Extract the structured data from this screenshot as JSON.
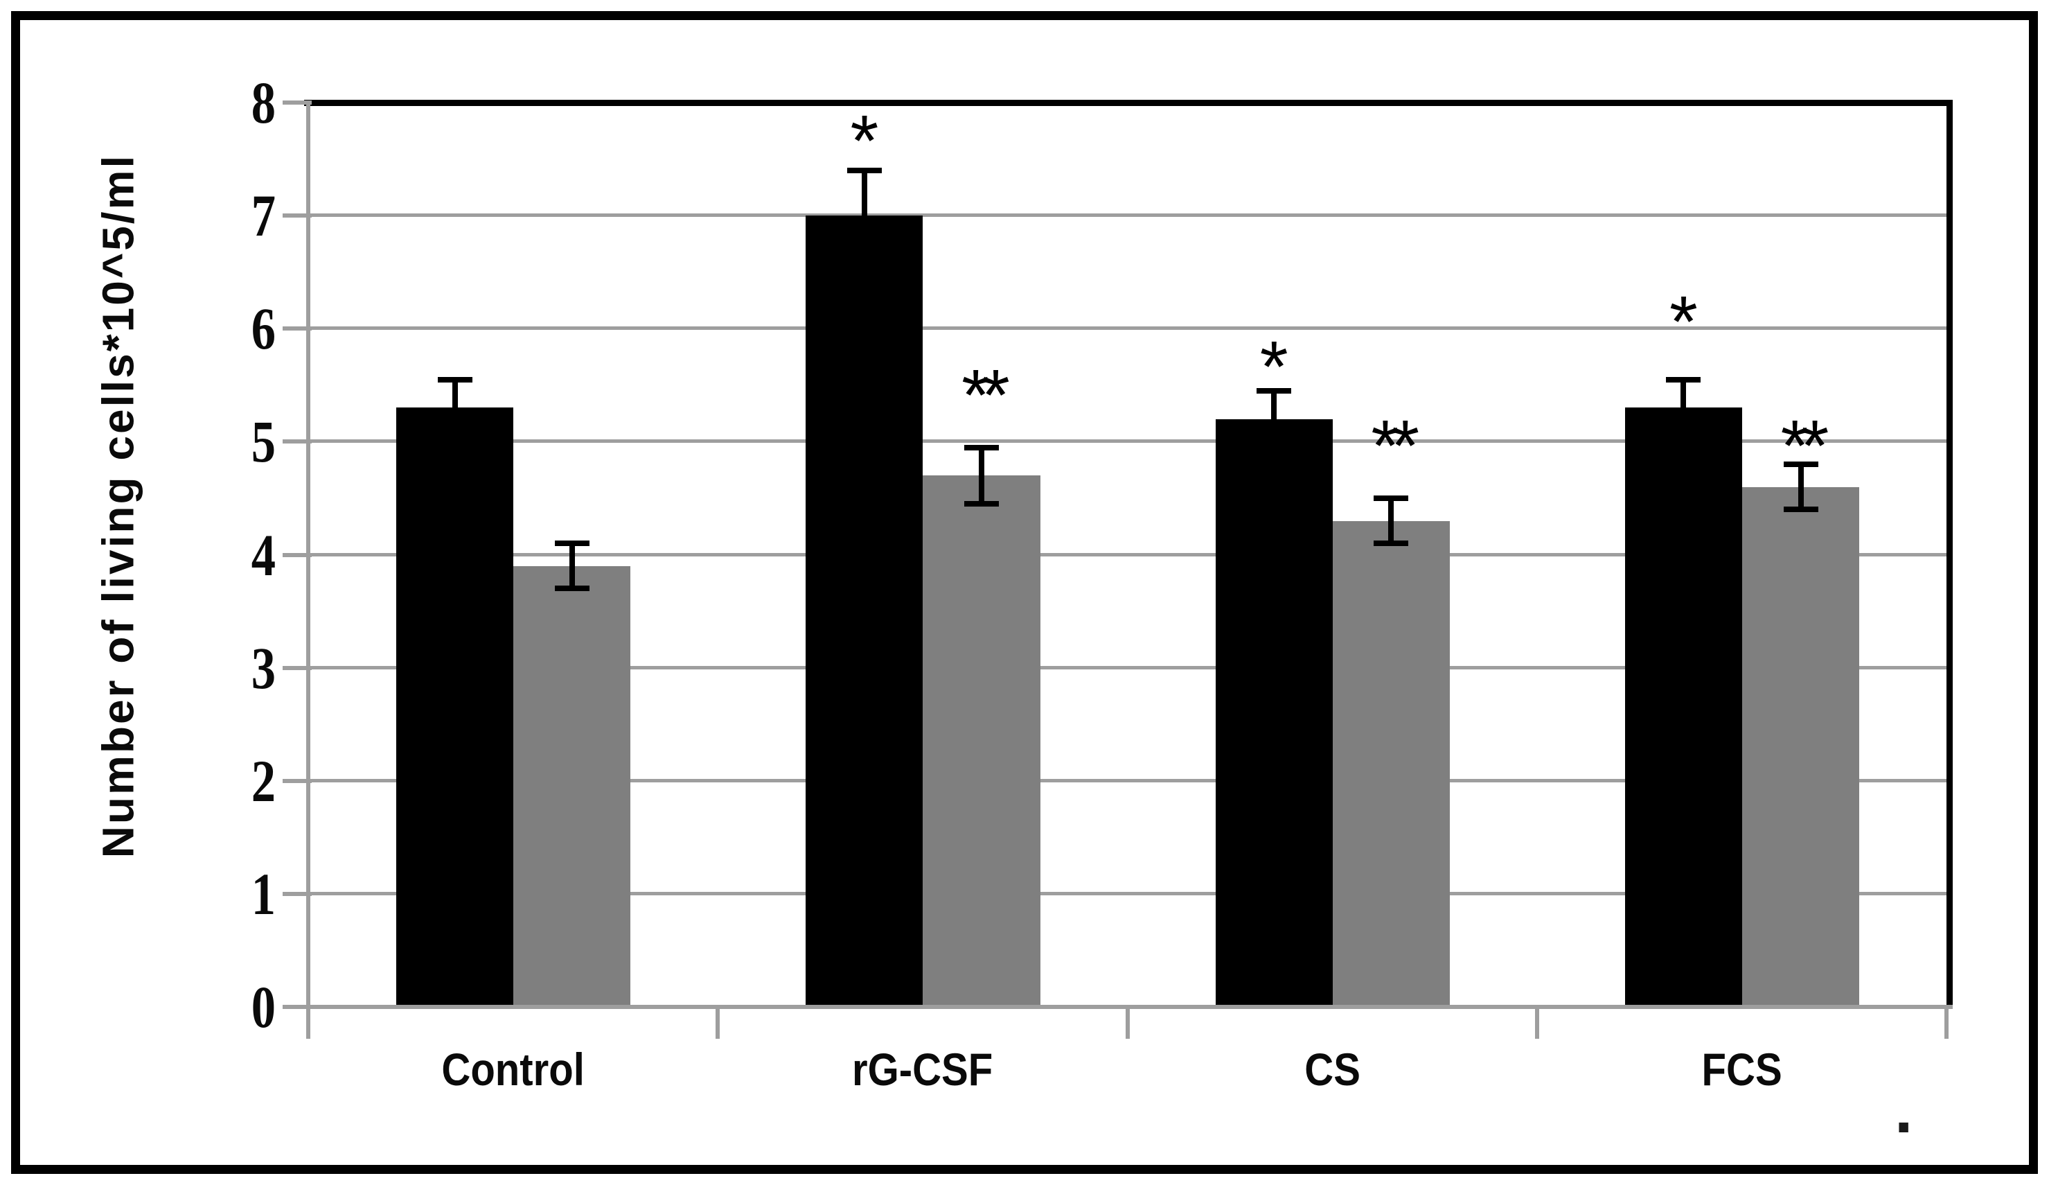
{
  "figure": {
    "background_color": "#ffffff",
    "frame_color": "#000000",
    "axis_color": "#9e9e9e",
    "gridline_color": "#9e9e9e"
  },
  "chart_data": {
    "type": "bar",
    "title": "",
    "xlabel": "",
    "ylabel": "Number of living cells*10^5/ml",
    "ylim": [
      0,
      8
    ],
    "yticks": [
      0,
      1,
      2,
      3,
      4,
      5,
      6,
      7,
      8
    ],
    "grid": true,
    "legend_position": "none",
    "categories": [
      "Control",
      "rG-CSF",
      "CS",
      "FCS"
    ],
    "series": [
      {
        "name": "black-bars",
        "color": "#000000",
        "values": [
          5.3,
          7.0,
          5.2,
          5.3
        ],
        "error_bars": [
          0.25,
          0.4,
          0.25,
          0.25
        ],
        "annotations": [
          "",
          "*",
          "*",
          "*"
        ],
        "annotation_y": [
          null,
          7.8,
          5.8,
          6.2
        ]
      },
      {
        "name": "gray-bars",
        "color": "#7f7f7f",
        "values": [
          3.9,
          4.7,
          4.3,
          4.6
        ],
        "error_bars": [
          0.2,
          0.25,
          0.2,
          0.2
        ],
        "annotations": [
          "",
          "**",
          "**",
          "**"
        ],
        "annotation_y": [
          null,
          5.55,
          5.1,
          5.1
        ]
      }
    ]
  },
  "artifacts": {
    "stray_period": "."
  }
}
